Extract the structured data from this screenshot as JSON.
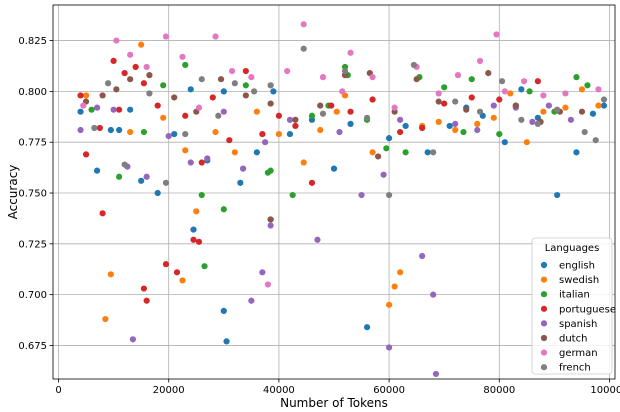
{
  "chart_data": {
    "type": "scatter",
    "xlabel": "Number of Tokens",
    "ylabel": "Accuracy",
    "xlim": [
      -1000,
      101000
    ],
    "ylim": [
      0.6585,
      0.8425
    ],
    "x_ticks": [
      0,
      20000,
      40000,
      60000,
      80000,
      100000
    ],
    "y_ticks": [
      0.675,
      0.7,
      0.725,
      0.75,
      0.775,
      0.8,
      0.825
    ],
    "x_tick_labels": [
      "0",
      "20000",
      "40000",
      "60000",
      "80000",
      "100000"
    ],
    "y_tick_labels": [
      "0.675",
      "0.700",
      "0.725",
      "0.750",
      "0.775",
      "0.800",
      "0.825"
    ],
    "grid": true,
    "legend": {
      "title": "Languages",
      "placement": "lower-right"
    },
    "series": [
      {
        "name": "english",
        "color": "#1f77b4",
        "x": [
          4000,
          7000,
          9500,
          11000,
          13000,
          15000,
          18000,
          21000,
          24000,
          27000,
          30000,
          33000,
          36000,
          39000,
          42000,
          46000,
          50000,
          53000,
          56000,
          60000,
          63000,
          67000,
          71000,
          74000,
          77000,
          81000,
          84000,
          87000,
          90500,
          94000,
          97000,
          99000,
          30500,
          24500,
          30000
        ],
        "y": [
          0.79,
          0.761,
          0.781,
          0.781,
          0.791,
          0.756,
          0.75,
          0.779,
          0.801,
          0.766,
          0.8,
          0.755,
          0.77,
          0.8,
          0.779,
          0.786,
          0.762,
          0.784,
          0.684,
          0.777,
          0.783,
          0.77,
          0.783,
          0.792,
          0.788,
          0.775,
          0.801,
          0.787,
          0.749,
          0.77,
          0.789,
          0.793,
          0.677,
          0.732,
          0.692
        ]
      },
      {
        "name": "swedish",
        "color": "#ff7f0e",
        "x": [
          5000,
          8500,
          9500,
          13000,
          15000,
          19000,
          22500,
          23000,
          25000,
          28500,
          32000,
          36000,
          40000,
          44500,
          47500,
          50500,
          52000,
          57000,
          60000,
          61000,
          62000,
          66000,
          69000,
          72000,
          76000,
          79000,
          82000,
          85000,
          88000,
          92000,
          95000,
          98000
        ],
        "y": [
          0.798,
          0.688,
          0.71,
          0.78,
          0.823,
          0.787,
          0.707,
          0.771,
          0.741,
          0.78,
          0.77,
          0.79,
          0.779,
          0.765,
          0.781,
          0.79,
          0.798,
          0.77,
          0.695,
          0.704,
          0.711,
          0.783,
          0.785,
          0.781,
          0.784,
          0.787,
          0.799,
          0.775,
          0.79,
          0.792,
          0.801,
          0.793
        ]
      },
      {
        "name": "italian",
        "color": "#2ca02c",
        "x": [
          6000,
          11000,
          15500,
          19000,
          23000,
          26000,
          30000,
          34000,
          38000,
          42500,
          46000,
          49000,
          52000,
          52500,
          56000,
          59500,
          63000,
          65500,
          70000,
          73500,
          75000,
          80000,
          83000,
          85500,
          90000,
          94000,
          96000,
          26500,
          38500
        ],
        "y": [
          0.791,
          0.758,
          0.78,
          0.803,
          0.813,
          0.749,
          0.742,
          0.803,
          0.76,
          0.749,
          0.788,
          0.793,
          0.812,
          0.808,
          0.786,
          0.772,
          0.77,
          0.807,
          0.802,
          0.78,
          0.806,
          0.779,
          0.793,
          0.8,
          0.79,
          0.807,
          0.803,
          0.714,
          0.761
        ]
      },
      {
        "name": "portuguese",
        "color": "#d62728",
        "x": [
          4000,
          5000,
          7500,
          8000,
          10000,
          11000,
          12000,
          14000,
          15500,
          18000,
          19500,
          21500,
          23000,
          24500,
          26000,
          28000,
          31000,
          34000,
          37000,
          40000,
          43000,
          46000,
          49500,
          53000,
          57000,
          62000,
          66000,
          70000,
          75000,
          80000,
          87000,
          15500,
          16000,
          25500,
          38500
        ],
        "y": [
          0.798,
          0.769,
          0.782,
          0.74,
          0.815,
          0.791,
          0.809,
          0.812,
          0.804,
          0.793,
          0.715,
          0.711,
          0.788,
          0.727,
          0.765,
          0.797,
          0.776,
          0.81,
          0.779,
          0.788,
          0.783,
          0.755,
          0.793,
          0.79,
          0.796,
          0.78,
          0.782,
          0.794,
          0.797,
          0.796,
          0.805,
          0.703,
          0.697,
          0.726,
          0.737
        ]
      },
      {
        "name": "spanish",
        "color": "#9467bd",
        "x": [
          4000,
          7000,
          10000,
          12500,
          16000,
          20000,
          24000,
          27000,
          30000,
          33500,
          37500,
          37000,
          38500,
          42000,
          47000,
          51000,
          55000,
          59000,
          62000,
          66000,
          68000,
          68500,
          72000,
          76000,
          79000,
          83000,
          86000,
          89000,
          93000,
          13500,
          35000,
          60000
        ],
        "y": [
          0.781,
          0.792,
          0.791,
          0.763,
          0.758,
          0.778,
          0.765,
          0.767,
          0.79,
          0.762,
          0.775,
          0.711,
          0.734,
          0.786,
          0.727,
          0.78,
          0.749,
          0.759,
          0.786,
          0.719,
          0.7,
          0.661,
          0.784,
          0.781,
          0.793,
          0.792,
          0.785,
          0.793,
          0.786,
          0.678,
          0.697,
          0.674
        ]
      },
      {
        "name": "dutch",
        "color": "#8c564b",
        "x": [
          5000,
          8000,
          10500,
          13000,
          16500,
          21000,
          25000,
          29500,
          34000,
          38500,
          43000,
          47500,
          52000,
          56500,
          58000,
          61000,
          65000,
          69000,
          74000,
          78000,
          83000,
          87500,
          91000,
          95000,
          38500
        ],
        "y": [
          0.795,
          0.798,
          0.801,
          0.806,
          0.808,
          0.797,
          0.79,
          0.806,
          0.798,
          0.794,
          0.786,
          0.793,
          0.808,
          0.809,
          0.768,
          0.79,
          0.806,
          0.795,
          0.791,
          0.809,
          0.793,
          0.785,
          0.79,
          0.79,
          0.737
        ]
      },
      {
        "name": "german",
        "color": "#e377c2",
        "x": [
          4500,
          10500,
          13000,
          16000,
          19500,
          22500,
          25500,
          28500,
          31500,
          35000,
          38500,
          41500,
          44500,
          48000,
          51500,
          53000,
          57000,
          61000,
          65000,
          69000,
          72500,
          76500,
          79500,
          81000,
          84500,
          88000,
          92000,
          98000,
          38000
        ],
        "y": [
          0.793,
          0.825,
          0.818,
          0.812,
          0.827,
          0.817,
          0.792,
          0.827,
          0.81,
          0.807,
          0.803,
          0.81,
          0.833,
          0.807,
          0.8,
          0.819,
          0.807,
          0.792,
          0.812,
          0.799,
          0.808,
          0.815,
          0.828,
          0.8,
          0.805,
          0.798,
          0.799,
          0.801,
          0.705
        ]
      },
      {
        "name": "french",
        "color": "#7f7f7f",
        "x": [
          6500,
          9000,
          12000,
          16500,
          19500,
          23000,
          26000,
          29000,
          32000,
          35500,
          38500,
          44500,
          48000,
          52000,
          56000,
          60000,
          64500,
          68000,
          72000,
          76500,
          80500,
          84000,
          87000,
          90500,
          95500,
          97500,
          99000
        ],
        "y": [
          0.782,
          0.804,
          0.764,
          0.799,
          0.755,
          0.779,
          0.806,
          0.788,
          0.804,
          0.8,
          0.803,
          0.821,
          0.789,
          0.81,
          0.787,
          0.749,
          0.813,
          0.77,
          0.795,
          0.79,
          0.805,
          0.786,
          0.784,
          0.791,
          0.78,
          0.776,
          0.796
        ]
      }
    ]
  }
}
